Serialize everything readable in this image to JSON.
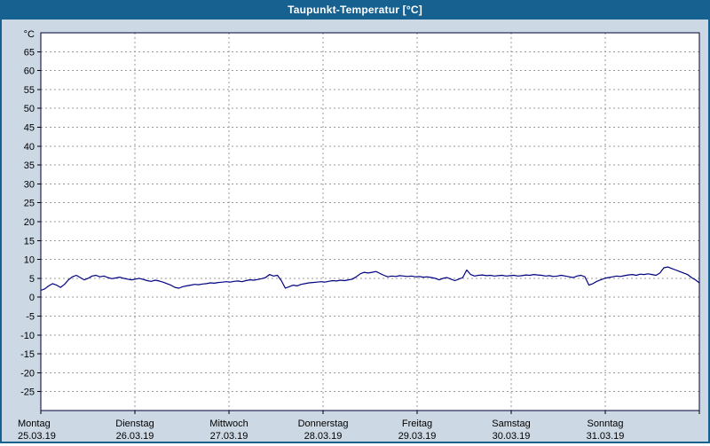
{
  "window": {
    "title": "Taupunkt-Temperatur [°C]"
  },
  "colors": {
    "titlebar": "#176191",
    "window_background": "#ccd8e4",
    "plot_background": "#ffffff",
    "frame": "#000033",
    "grid": "#999999",
    "line": "#000080",
    "tick_text": "#000000"
  },
  "chart_data": {
    "type": "line",
    "title": "Taupunkt-Temperatur [°C]",
    "xlabel": "",
    "ylabel": "°C",
    "ylim": [
      -30,
      70
    ],
    "ytick_step": 5,
    "yticks": [
      65,
      60,
      55,
      50,
      45,
      40,
      35,
      30,
      25,
      20,
      15,
      10,
      5,
      0,
      -5,
      -10,
      -15,
      -20,
      -25
    ],
    "grid": true,
    "legend": "none",
    "days": [
      {
        "name": "Montag",
        "date": "25.03.19"
      },
      {
        "name": "Dienstag",
        "date": "26.03.19"
      },
      {
        "name": "Mittwoch",
        "date": "27.03.19"
      },
      {
        "name": "Donnerstag",
        "date": "28.03.19"
      },
      {
        "name": "Freitag",
        "date": "29.03.19"
      },
      {
        "name": "Samstag",
        "date": "30.03.19"
      },
      {
        "name": "Sonntag",
        "date": "31.03.19"
      }
    ],
    "points_per_day": 24,
    "series": [
      {
        "name": "Taupunkt-Temperatur",
        "color": "#000080",
        "values": [
          1.8,
          2.2,
          3.0,
          3.6,
          3.2,
          2.6,
          3.4,
          4.6,
          5.4,
          5.8,
          5.2,
          4.6,
          5.0,
          5.6,
          5.8,
          5.4,
          5.6,
          5.2,
          4.9,
          5.1,
          5.3,
          5.0,
          4.8,
          4.6,
          4.8,
          5.0,
          4.7,
          4.4,
          4.2,
          4.5,
          4.3,
          4.0,
          3.6,
          3.2,
          2.6,
          2.4,
          2.8,
          3.0,
          3.2,
          3.4,
          3.3,
          3.5,
          3.6,
          3.8,
          3.7,
          3.9,
          4.0,
          4.1,
          4.0,
          4.2,
          4.3,
          4.1,
          4.4,
          4.6,
          4.5,
          4.7,
          4.9,
          5.2,
          6.0,
          5.6,
          5.8,
          4.4,
          2.4,
          2.8,
          3.2,
          3.0,
          3.4,
          3.6,
          3.8,
          3.9,
          4.0,
          4.1,
          4.0,
          4.2,
          4.4,
          4.3,
          4.5,
          4.4,
          4.6,
          4.8,
          5.4,
          6.2,
          6.6,
          6.4,
          6.6,
          6.8,
          6.3,
          5.8,
          5.4,
          5.6,
          5.5,
          5.7,
          5.6,
          5.5,
          5.6,
          5.4,
          5.5,
          5.3,
          5.4,
          5.2,
          5.0,
          4.6,
          5.0,
          5.2,
          4.8,
          4.4,
          4.8,
          5.2,
          7.2,
          6.0,
          5.6,
          5.8,
          5.9,
          5.7,
          5.8,
          5.6,
          5.7,
          5.8,
          5.6,
          5.7,
          5.8,
          5.6,
          5.7,
          5.9,
          5.8,
          6.0,
          5.9,
          5.8,
          5.6,
          5.7,
          5.5,
          5.6,
          5.8,
          5.6,
          5.4,
          5.2,
          5.6,
          5.8,
          5.4,
          3.2,
          3.6,
          4.2,
          4.6,
          5.0,
          5.2,
          5.4,
          5.6,
          5.5,
          5.7,
          5.9,
          6.0,
          5.8,
          6.1,
          6.0,
          6.2,
          6.0,
          5.8,
          6.4,
          7.8,
          8.0,
          7.6,
          7.2,
          6.8,
          6.4,
          6.0,
          5.2,
          4.6,
          3.8
        ]
      }
    ]
  }
}
